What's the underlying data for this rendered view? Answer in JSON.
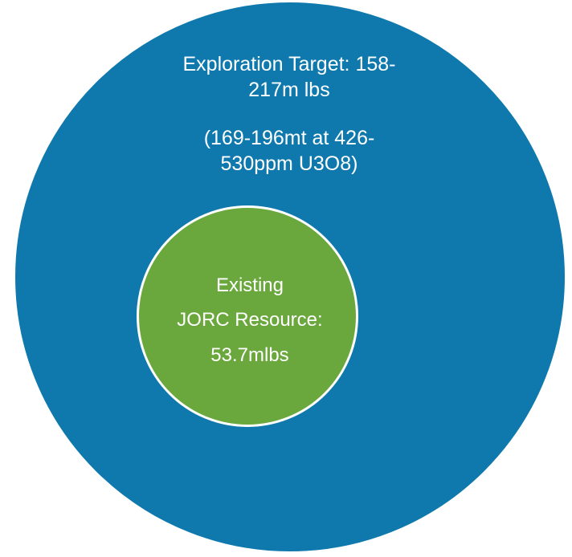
{
  "diagram": {
    "outer": {
      "title": "Exploration Target: 158-\n217m lbs",
      "detail": "(169-196mt at 426-\n530ppm U3O8)",
      "color": "#0f79ad"
    },
    "inner": {
      "line1": "Existing",
      "line2": "JORC Resource:",
      "line3": "53.7mlbs",
      "color": "#6aa83d"
    }
  }
}
